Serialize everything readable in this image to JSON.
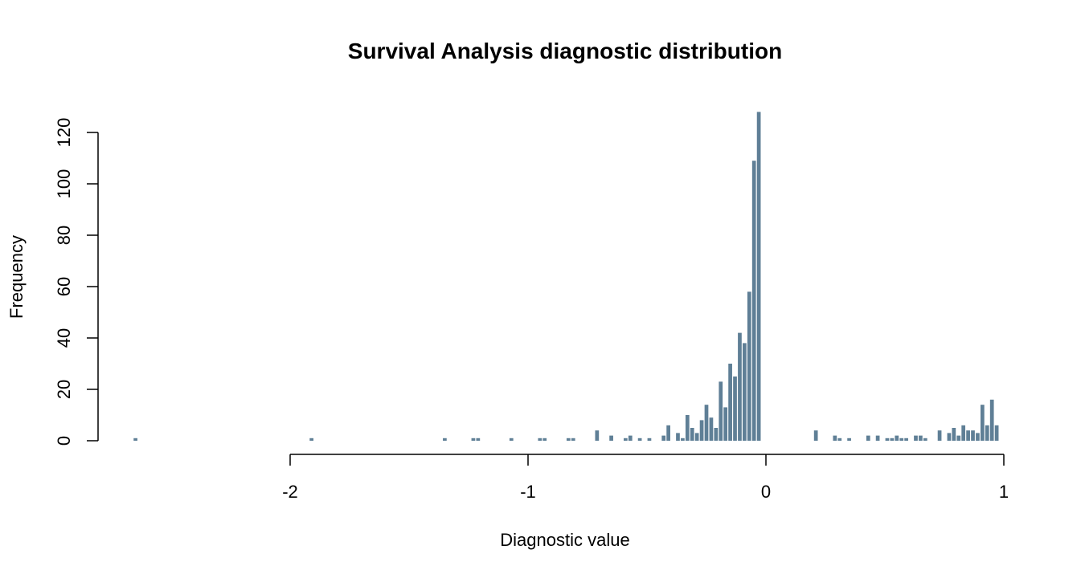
{
  "chart_data": {
    "type": "bar",
    "title": "Survival Analysis diagnostic distribution",
    "xlabel": "Diagnostic value",
    "ylabel": "Frequency",
    "xlim": [
      -2.7,
      1
    ],
    "ylim": [
      0,
      128
    ],
    "grid": false,
    "bar_color": "#5f7f96",
    "bin_width": 0.02,
    "xticks": [
      {
        "value": -2,
        "label": "-2"
      },
      {
        "value": -1,
        "label": "-1"
      },
      {
        "value": 0,
        "label": "0"
      },
      {
        "value": 1,
        "label": "1"
      }
    ],
    "yticks": [
      {
        "value": 0,
        "label": "0"
      },
      {
        "value": 20,
        "label": "20"
      },
      {
        "value": 40,
        "label": "40"
      },
      {
        "value": 60,
        "label": "60"
      },
      {
        "value": 80,
        "label": "80"
      },
      {
        "value": 100,
        "label": "100"
      },
      {
        "value": 120,
        "label": "120"
      }
    ],
    "bins": [
      [
        -2.66,
        1
      ],
      [
        -1.92,
        1
      ],
      [
        -1.36,
        1
      ],
      [
        -1.24,
        1
      ],
      [
        -1.22,
        1
      ],
      [
        -1.08,
        1
      ],
      [
        -0.96,
        1
      ],
      [
        -0.94,
        1
      ],
      [
        -0.84,
        1
      ],
      [
        -0.82,
        1
      ],
      [
        -0.72,
        4
      ],
      [
        -0.66,
        2
      ],
      [
        -0.6,
        1
      ],
      [
        -0.58,
        2
      ],
      [
        -0.54,
        1
      ],
      [
        -0.5,
        1
      ],
      [
        -0.44,
        2
      ],
      [
        -0.42,
        6
      ],
      [
        -0.38,
        3
      ],
      [
        -0.36,
        1
      ],
      [
        -0.34,
        10
      ],
      [
        -0.32,
        5
      ],
      [
        -0.3,
        3
      ],
      [
        -0.28,
        8
      ],
      [
        -0.26,
        14
      ],
      [
        -0.24,
        9
      ],
      [
        -0.22,
        5
      ],
      [
        -0.2,
        23
      ],
      [
        -0.18,
        13
      ],
      [
        -0.16,
        30
      ],
      [
        -0.14,
        25
      ],
      [
        -0.12,
        42
      ],
      [
        -0.1,
        38
      ],
      [
        -0.08,
        58
      ],
      [
        -0.06,
        109
      ],
      [
        -0.04,
        128
      ],
      [
        0.2,
        4
      ],
      [
        0.28,
        2
      ],
      [
        0.3,
        1
      ],
      [
        0.34,
        1
      ],
      [
        0.42,
        2
      ],
      [
        0.46,
        2
      ],
      [
        0.5,
        1
      ],
      [
        0.52,
        1
      ],
      [
        0.54,
        2
      ],
      [
        0.56,
        1
      ],
      [
        0.58,
        1
      ],
      [
        0.62,
        2
      ],
      [
        0.64,
        2
      ],
      [
        0.66,
        1
      ],
      [
        0.72,
        4
      ],
      [
        0.76,
        3
      ],
      [
        0.78,
        5
      ],
      [
        0.8,
        2
      ],
      [
        0.82,
        6
      ],
      [
        0.84,
        4
      ],
      [
        0.86,
        4
      ],
      [
        0.88,
        3
      ],
      [
        0.9,
        14
      ],
      [
        0.92,
        6
      ],
      [
        0.94,
        16
      ],
      [
        0.96,
        6
      ]
    ]
  }
}
